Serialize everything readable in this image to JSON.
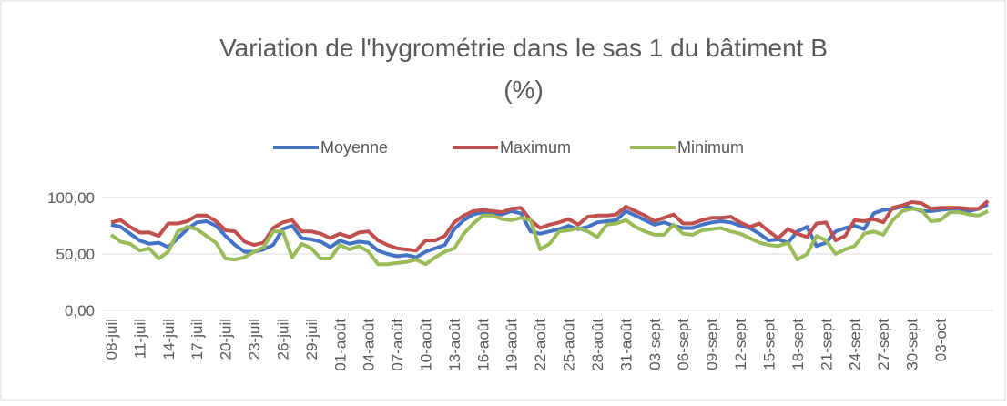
{
  "chart_data": {
    "type": "line",
    "title": "Variation de l'hygrométrie dans le sas 1 du bâtiment B",
    "subtitle": "(%)",
    "categories": [
      "08-juil",
      null,
      null,
      "11-juil",
      null,
      null,
      "14-juil",
      null,
      null,
      "17-juil",
      null,
      null,
      "20-juil",
      null,
      null,
      "23-juil",
      null,
      null,
      "26-juil",
      null,
      null,
      "29-juil",
      null,
      null,
      "01-août",
      null,
      null,
      "04-août",
      null,
      null,
      "07-août",
      null,
      null,
      "10-août",
      null,
      null,
      "13-août",
      null,
      null,
      "16-août",
      null,
      null,
      "19-août",
      null,
      null,
      "22-août",
      null,
      null,
      "25-août",
      null,
      null,
      "28-août",
      null,
      null,
      "31-août",
      null,
      null,
      "03-sept",
      null,
      null,
      "06-sept",
      null,
      null,
      "09-sept",
      null,
      null,
      "12-sept",
      null,
      null,
      "15-sept",
      null,
      null,
      "18-sept",
      null,
      null,
      "21-sept",
      null,
      null,
      "24-sept",
      null,
      null,
      "27-sept",
      null,
      null,
      "30-sept",
      null,
      null,
      "03-oct",
      null,
      null,
      null,
      null,
      null
    ],
    "series": [
      {
        "name": "Moyenne",
        "color": "#4472c4",
        "values": [
          76,
          74,
          68,
          62,
          59,
          60,
          56,
          64,
          72,
          78,
          79,
          75,
          66,
          58,
          52,
          52,
          54,
          58,
          72,
          75,
          64,
          63,
          61,
          56,
          62,
          59,
          61,
          60,
          53,
          50,
          48,
          49,
          47,
          52,
          55,
          58,
          72,
          80,
          85,
          87,
          86,
          85,
          88,
          86,
          70,
          68,
          70,
          72,
          75,
          72,
          74,
          78,
          79,
          80,
          88,
          84,
          80,
          76,
          78,
          75,
          73,
          73,
          76,
          78,
          79,
          78,
          75,
          73,
          68,
          62,
          63,
          60,
          70,
          74,
          57,
          60,
          70,
          73,
          75,
          72,
          86,
          89,
          90,
          92,
          91,
          88,
          88,
          89,
          90,
          90,
          88,
          90,
          94
        ]
      },
      {
        "name": "Maximum",
        "color": "#c0504d",
        "values": [
          78,
          80,
          74,
          69,
          69,
          66,
          77,
          77,
          79,
          84,
          84,
          79,
          71,
          70,
          61,
          58,
          60,
          73,
          78,
          80,
          70,
          70,
          68,
          64,
          68,
          65,
          69,
          70,
          62,
          58,
          55,
          54,
          53,
          62,
          62,
          66,
          78,
          84,
          88,
          89,
          88,
          87,
          90,
          91,
          80,
          73,
          76,
          78,
          81,
          76,
          83,
          84,
          84,
          85,
          92,
          88,
          84,
          79,
          82,
          85,
          77,
          77,
          80,
          82,
          82,
          83,
          78,
          74,
          77,
          70,
          64,
          72,
          68,
          65,
          77,
          78,
          62,
          66,
          80,
          79,
          81,
          78,
          91,
          93,
          96,
          95,
          90,
          91,
          91,
          91,
          90,
          90,
          97
        ]
      },
      {
        "name": "Minimum",
        "color": "#9bbb59",
        "values": [
          67,
          61,
          59,
          53,
          55,
          46,
          52,
          70,
          74,
          72,
          66,
          60,
          46,
          45,
          47,
          52,
          56,
          70,
          70,
          47,
          59,
          55,
          46,
          46,
          58,
          54,
          57,
          52,
          41,
          41,
          42,
          43,
          45,
          41,
          47,
          52,
          55,
          68,
          77,
          84,
          84,
          81,
          80,
          82,
          80,
          54,
          59,
          70,
          71,
          73,
          70,
          65,
          76,
          77,
          80,
          74,
          70,
          67,
          67,
          76,
          68,
          67,
          71,
          72,
          73,
          70,
          68,
          64,
          60,
          58,
          57,
          60,
          45,
          50,
          66,
          62,
          50,
          54,
          57,
          68,
          70,
          67,
          80,
          88,
          90,
          89,
          79,
          80,
          87,
          87,
          85,
          84,
          88
        ]
      }
    ],
    "ylim": [
      0,
      100
    ],
    "yticks": [
      {
        "value": 0,
        "label": "0,00"
      },
      {
        "value": 50,
        "label": "50,00"
      },
      {
        "value": 100,
        "label": "100,00"
      }
    ],
    "grid": true
  }
}
